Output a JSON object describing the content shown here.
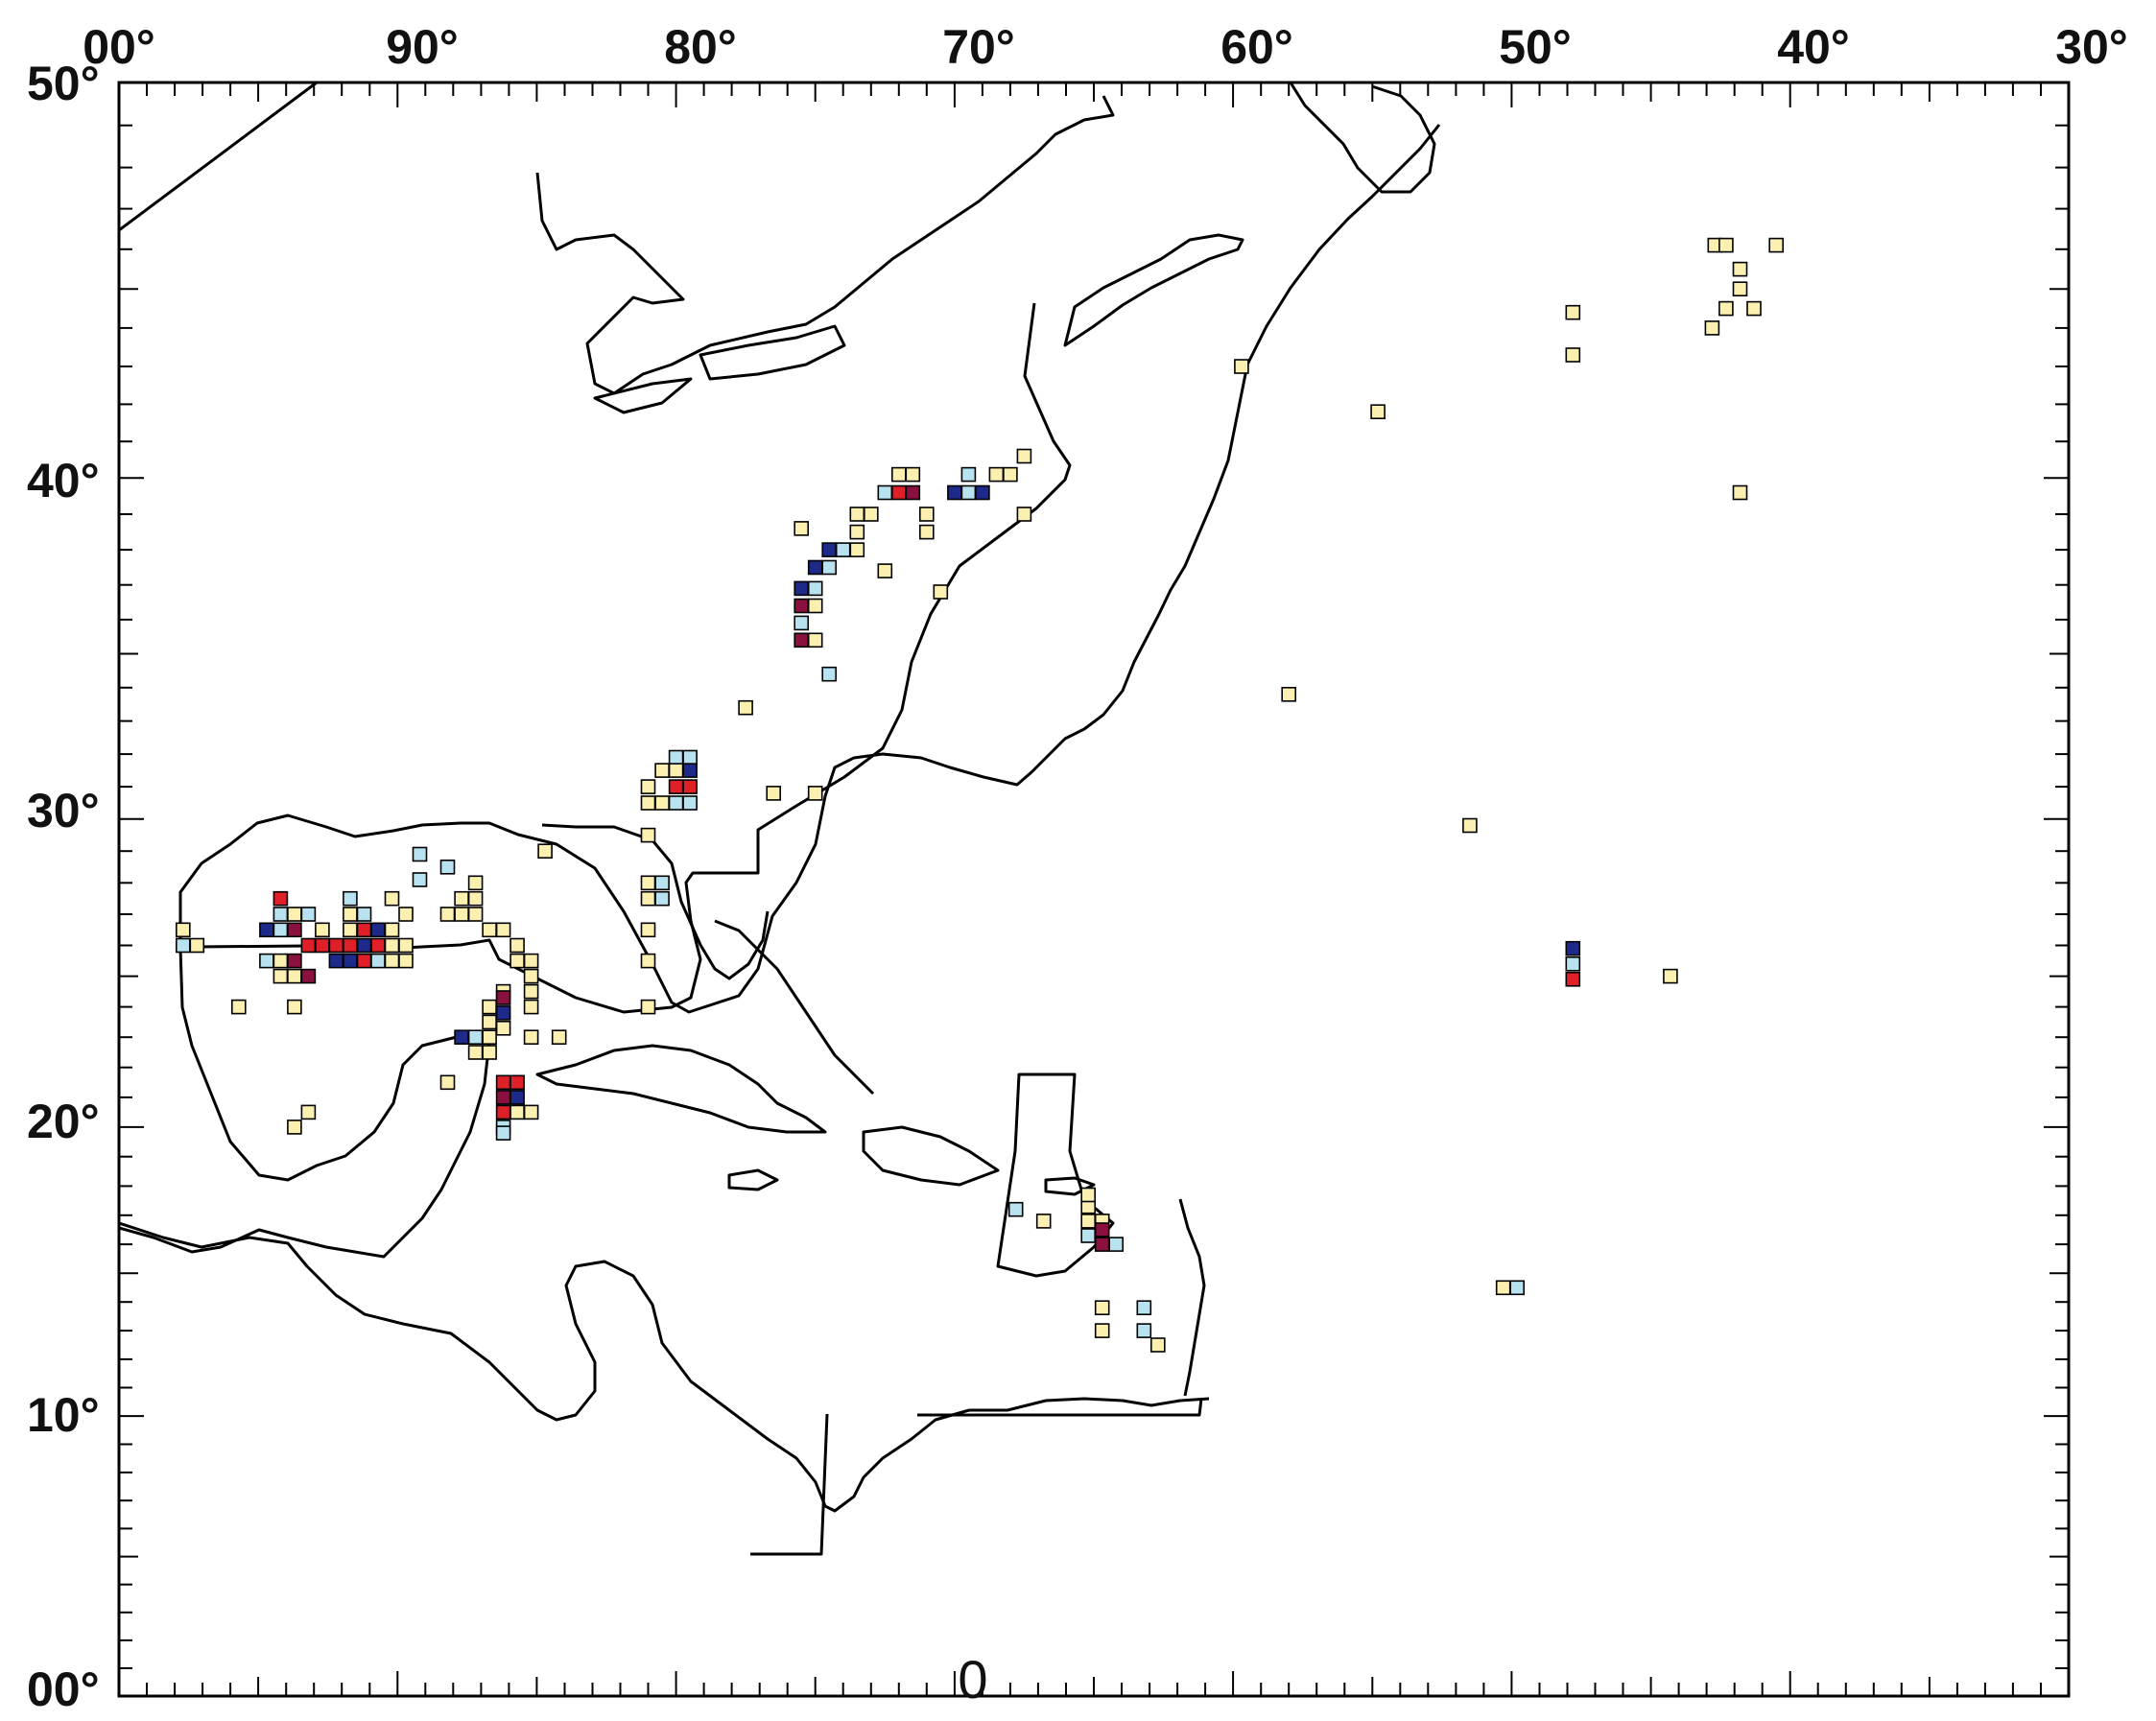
{
  "top_axis_labels": [
    "00°",
    "90°",
    "80°",
    "70°",
    "60°",
    "50°",
    "40°",
    "30°"
  ],
  "left_axis_labels": [
    "50°",
    "40°",
    "30°",
    "20°",
    "10°",
    "00°"
  ],
  "bottom_label": "0",
  "colors": {
    "frame": "#000000",
    "coast": "#000000",
    "cell_border": "#000000",
    "pale_yellow": "#fbf0b0",
    "light_blue": "#b8e2f0",
    "dark_blue": "#1e2a8a",
    "red": "#e02028",
    "maroon": "#8a1040"
  },
  "chart_data": {
    "type": "heatmap",
    "lon_range_deg_west": [
      100,
      30
    ],
    "lat_range_deg_north": [
      0,
      50
    ],
    "cell_size_deg": 0.5,
    "category_colors": {
      "Y": "pale_yellow",
      "C": "light_blue",
      "B": "dark_blue",
      "R": "red",
      "M": "maroon"
    },
    "cells": [
      [
        "Y",
        42.7,
        46.1
      ],
      [
        "Y",
        42.3,
        46.1
      ],
      [
        "Y",
        40.5,
        46.1
      ],
      [
        "Y",
        41.8,
        45.5
      ],
      [
        "Y",
        41.8,
        45.0
      ],
      [
        "Y",
        42.3,
        44.5
      ],
      [
        "Y",
        41.3,
        44.5
      ],
      [
        "Y",
        42.8,
        44.0
      ],
      [
        "Y",
        47.8,
        44.4
      ],
      [
        "Y",
        47.8,
        43.3
      ],
      [
        "Y",
        59.7,
        43.0
      ],
      [
        "Y",
        54.8,
        41.8
      ],
      [
        "Y",
        41.8,
        39.6
      ],
      [
        "Y",
        67.5,
        40.6
      ],
      [
        "Y",
        68.0,
        40.1
      ],
      [
        "Y",
        68.5,
        40.1
      ],
      [
        "Y",
        67.5,
        39.0
      ],
      [
        "Y",
        72.0,
        40.1
      ],
      [
        "Y",
        71.5,
        40.1
      ],
      [
        "C",
        72.5,
        39.6
      ],
      [
        "R",
        72.0,
        39.6
      ],
      [
        "M",
        71.5,
        39.6
      ],
      [
        "C",
        69.5,
        40.1
      ],
      [
        "B",
        70.0,
        39.6
      ],
      [
        "C",
        69.5,
        39.6
      ],
      [
        "B",
        69.0,
        39.6
      ],
      [
        "Y",
        71.0,
        39.0
      ],
      [
        "Y",
        71.0,
        38.5
      ],
      [
        "Y",
        73.0,
        39.0
      ],
      [
        "Y",
        73.5,
        39.0
      ],
      [
        "Y",
        73.5,
        38.5
      ],
      [
        "C",
        74.0,
        38.0
      ],
      [
        "B",
        74.5,
        38.0
      ],
      [
        "Y",
        73.5,
        38.0
      ],
      [
        "B",
        75.0,
        37.5
      ],
      [
        "C",
        74.5,
        37.5
      ],
      [
        "Y",
        72.5,
        37.4
      ],
      [
        "Y",
        70.5,
        36.8
      ],
      [
        "B",
        75.5,
        36.9
      ],
      [
        "C",
        75.0,
        36.9
      ],
      [
        "M",
        75.5,
        36.4
      ],
      [
        "Y",
        75.0,
        36.4
      ],
      [
        "C",
        75.5,
        35.9
      ],
      [
        "M",
        75.5,
        35.4
      ],
      [
        "Y",
        75.0,
        35.4
      ],
      [
        "C",
        74.5,
        34.4
      ],
      [
        "Y",
        75.5,
        38.6
      ],
      [
        "Y",
        77.5,
        33.4
      ],
      [
        "Y",
        76.5,
        30.8
      ],
      [
        "Y",
        75.0,
        30.8
      ],
      [
        "Y",
        58.0,
        33.8
      ],
      [
        "Y",
        51.5,
        29.8
      ],
      [
        "Y",
        80.5,
        31.5
      ],
      [
        "C",
        80.0,
        31.9
      ],
      [
        "C",
        79.5,
        31.9
      ],
      [
        "Y",
        80.0,
        31.5
      ],
      [
        "B",
        79.5,
        31.5
      ],
      [
        "Y",
        81.0,
        31.0
      ],
      [
        "R",
        80.0,
        31.0
      ],
      [
        "R",
        79.5,
        31.0
      ],
      [
        "Y",
        81.0,
        30.5
      ],
      [
        "Y",
        80.5,
        30.5
      ],
      [
        "C",
        80.0,
        30.5
      ],
      [
        "C",
        79.5,
        30.5
      ],
      [
        "Y",
        81.0,
        29.5
      ],
      [
        "Y",
        81.0,
        28.0
      ],
      [
        "C",
        80.5,
        28.0
      ],
      [
        "Y",
        81.0,
        27.5
      ],
      [
        "C",
        80.5,
        27.5
      ],
      [
        "Y",
        81.0,
        26.5
      ],
      [
        "Y",
        81.0,
        25.5
      ],
      [
        "Y",
        81.0,
        24.0
      ],
      [
        "C",
        89.2,
        28.9
      ],
      [
        "C",
        89.2,
        28.1
      ],
      [
        "C",
        88.2,
        28.5
      ],
      [
        "Y",
        87.2,
        28.0
      ],
      [
        "Y",
        87.7,
        27.5
      ],
      [
        "Y",
        87.2,
        27.5
      ],
      [
        "Y",
        88.2,
        27.0
      ],
      [
        "Y",
        87.7,
        27.0
      ],
      [
        "Y",
        87.2,
        27.0
      ],
      [
        "Y",
        86.7,
        26.5
      ],
      [
        "Y",
        86.2,
        26.5
      ],
      [
        "Y",
        85.7,
        26.0
      ],
      [
        "Y",
        85.7,
        25.5
      ],
      [
        "Y",
        85.2,
        25.5
      ],
      [
        "Y",
        85.2,
        25.0
      ],
      [
        "Y",
        85.2,
        24.5
      ],
      [
        "Y",
        85.2,
        24.0
      ],
      [
        "Y",
        84.7,
        29.0
      ],
      [
        "Y",
        89.7,
        26.0
      ],
      [
        "Y",
        89.7,
        27.0
      ],
      [
        "Y",
        90.2,
        27.5
      ],
      [
        "Y",
        90.2,
        26.5
      ],
      [
        "Y",
        91.7,
        27.0
      ],
      [
        "C",
        91.2,
        27.0
      ],
      [
        "C",
        91.7,
        27.5
      ],
      [
        "R",
        91.2,
        26.5
      ],
      [
        "B",
        90.7,
        26.5
      ],
      [
        "Y",
        91.7,
        26.5
      ],
      [
        "R",
        92.2,
        26.0
      ],
      [
        "R",
        91.7,
        26.0
      ],
      [
        "B",
        91.2,
        26.0
      ],
      [
        "R",
        90.7,
        26.0
      ],
      [
        "Y",
        90.2,
        26.0
      ],
      [
        "B",
        91.7,
        25.5
      ],
      [
        "B",
        92.2,
        25.5
      ],
      [
        "R",
        91.2,
        25.5
      ],
      [
        "C",
        90.7,
        25.5
      ],
      [
        "Y",
        90.2,
        25.5
      ],
      [
        "Y",
        89.7,
        25.5
      ],
      [
        "R",
        92.7,
        26.0
      ],
      [
        "R",
        93.2,
        26.0
      ],
      [
        "Y",
        92.7,
        26.5
      ],
      [
        "C",
        93.2,
        27.0
      ],
      [
        "R",
        94.2,
        27.5
      ],
      [
        "Y",
        93.7,
        27.0
      ],
      [
        "C",
        94.2,
        27.0
      ],
      [
        "B",
        94.7,
        26.5
      ],
      [
        "C",
        94.2,
        26.5
      ],
      [
        "M",
        93.7,
        26.5
      ],
      [
        "C",
        94.7,
        25.5
      ],
      [
        "M",
        93.7,
        25.5
      ],
      [
        "Y",
        94.2,
        25.5
      ],
      [
        "Y",
        93.7,
        25.0
      ],
      [
        "Y",
        94.2,
        25.0
      ],
      [
        "M",
        93.2,
        25.0
      ],
      [
        "Y",
        93.7,
        24.0
      ],
      [
        "Y",
        95.7,
        24.0
      ],
      [
        "Y",
        97.7,
        26.5
      ],
      [
        "Y",
        97.2,
        26.0
      ],
      [
        "C",
        97.7,
        26.0
      ],
      [
        "Y",
        86.7,
        24.0
      ],
      [
        "Y",
        86.2,
        24.5
      ],
      [
        "M",
        86.2,
        24.3
      ],
      [
        "B",
        86.2,
        23.8
      ],
      [
        "Y",
        86.2,
        23.3
      ],
      [
        "Y",
        86.7,
        23.5
      ],
      [
        "C",
        87.2,
        23.0
      ],
      [
        "Y",
        86.7,
        23.0
      ],
      [
        "Y",
        87.2,
        22.5
      ],
      [
        "Y",
        86.7,
        22.5
      ],
      [
        "B",
        87.7,
        23.0
      ],
      [
        "Y",
        85.2,
        23.0
      ],
      [
        "Y",
        84.2,
        23.0
      ],
      [
        "Y",
        88.2,
        21.5
      ],
      [
        "R",
        86.2,
        21.5
      ],
      [
        "R",
        85.7,
        21.5
      ],
      [
        "M",
        86.2,
        21.0
      ],
      [
        "B",
        85.7,
        21.0
      ],
      [
        "R",
        86.2,
        20.5
      ],
      [
        "Y",
        85.7,
        20.5
      ],
      [
        "C",
        86.2,
        20.0
      ],
      [
        "Y",
        85.2,
        20.5
      ],
      [
        "C",
        86.2,
        19.8
      ],
      [
        "Y",
        93.7,
        20.0
      ],
      [
        "Y",
        93.2,
        20.5
      ],
      [
        "C",
        67.8,
        17.2
      ],
      [
        "Y",
        66.8,
        16.8
      ],
      [
        "Y",
        65.2,
        17.3
      ],
      [
        "Y",
        64.7,
        16.8
      ],
      [
        "Y",
        65.2,
        16.8
      ],
      [
        "M",
        64.7,
        16.5
      ],
      [
        "C",
        65.2,
        16.3
      ],
      [
        "M",
        64.7,
        16.0
      ],
      [
        "C",
        64.2,
        16.0
      ],
      [
        "Y",
        65.2,
        17.7
      ],
      [
        "Y",
        64.7,
        13.8
      ],
      [
        "C",
        63.2,
        13.8
      ],
      [
        "Y",
        64.7,
        13.0
      ],
      [
        "C",
        63.2,
        13.0
      ],
      [
        "Y",
        62.7,
        12.5
      ],
      [
        "B",
        47.8,
        25.9
      ],
      [
        "C",
        47.8,
        25.4
      ],
      [
        "R",
        47.8,
        24.9
      ],
      [
        "Y",
        44.3,
        25.0
      ],
      [
        "Y",
        50.3,
        14.5
      ],
      [
        "C",
        49.8,
        14.5
      ]
    ]
  }
}
